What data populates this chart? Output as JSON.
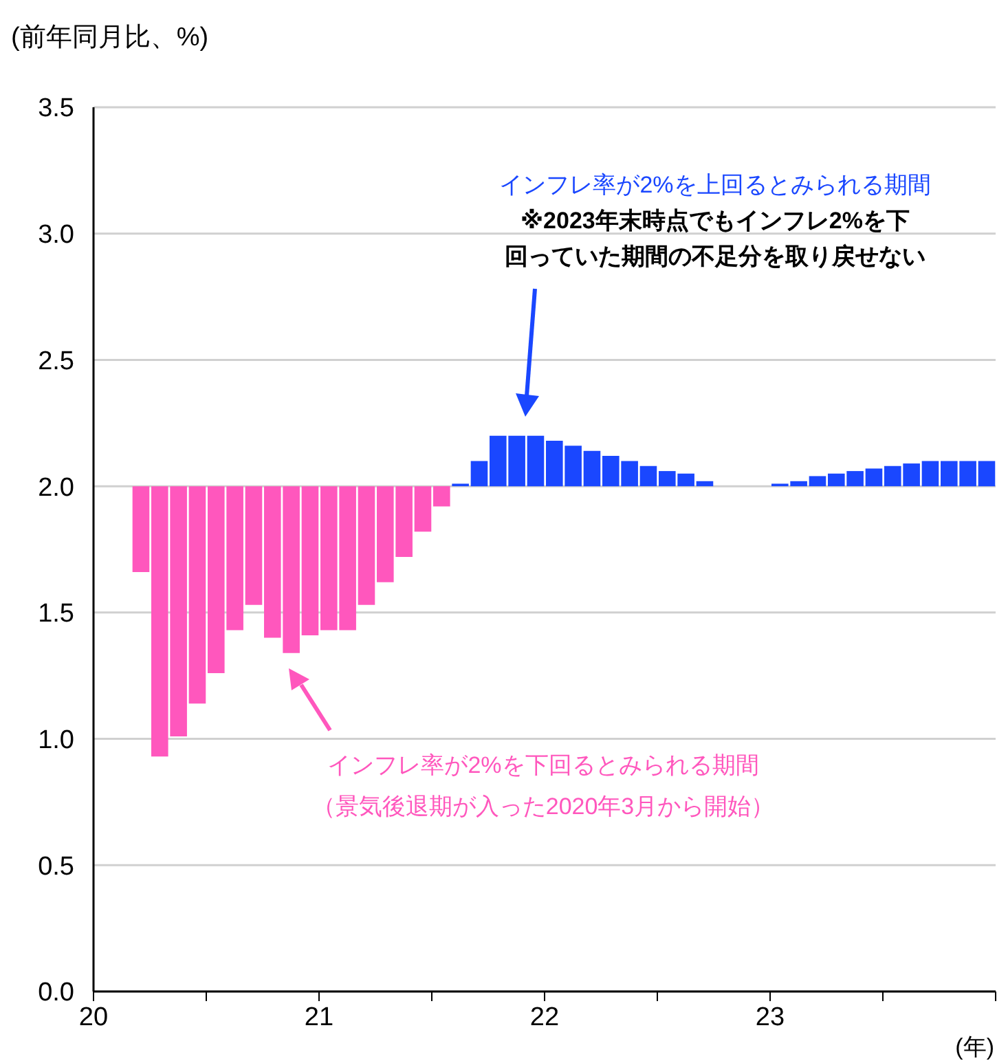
{
  "chart_data": {
    "type": "bar",
    "ylabel": "(前年同月比、%)",
    "xlabel": "(年)",
    "x": [
      "2020-03-16",
      "2020-04-16",
      "2020-05-16",
      "2020-06-16",
      "2020-07-16",
      "2020-08-16",
      "2020-09-16",
      "2020-10-16",
      "2020-11-16",
      "2020-12-16",
      "2021-01-16",
      "2021-02-16",
      "2021-03-16",
      "2021-04-16",
      "2021-05-16",
      "2021-06-16",
      "2021-07-16",
      "2021-08-16",
      "2021-09-16",
      "2021-10-16",
      "2021-11-16",
      "2021-12-16",
      "2022-01-16",
      "2022-02-16",
      "2022-03-16",
      "2022-04-16",
      "2022-05-16",
      "2022-06-16",
      "2022-07-16",
      "2022-08-16",
      "2022-09-16",
      "2022-10-16",
      "2022-11-16",
      "2022-12-16",
      "2023-01-16",
      "2023-02-16",
      "2023-03-16",
      "2023-04-16",
      "2023-05-16",
      "2023-06-16",
      "2023-07-16",
      "2023-08-16",
      "2023-09-16",
      "2023-10-16",
      "2023-11-16",
      "2023-12-16"
    ],
    "base": [
      2,
      2,
      2,
      2,
      2,
      2,
      2,
      2,
      2,
      2,
      2,
      2,
      2,
      2,
      2,
      2,
      2,
      2,
      2,
      2,
      2,
      2,
      2,
      2,
      2,
      2,
      2,
      2,
      2,
      2,
      2,
      null,
      null,
      null,
      2,
      2,
      2,
      2,
      2,
      2,
      2,
      2,
      2,
      2,
      2,
      2
    ],
    "values": [
      -0.34,
      -1.07,
      -0.99,
      -0.86,
      -0.74,
      -0.57,
      -0.47,
      -0.6,
      -0.66,
      -0.59,
      -0.57,
      -0.57,
      -0.47,
      -0.38,
      -0.28,
      -0.18,
      -0.08,
      0.01,
      0.1,
      0.2,
      0.2,
      0.2,
      0.18,
      0.16,
      0.14,
      0.12,
      0.1,
      0.08,
      0.06,
      0.05,
      0.02,
      null,
      null,
      null,
      0.01,
      0.02,
      0.04,
      0.05,
      0.06,
      0.07,
      0.08,
      0.09,
      0.1,
      0.1,
      0.1,
      0.1
    ],
    "colors": [
      "#ff57bd",
      "#ff57bd",
      "#ff57bd",
      "#ff57bd",
      "#ff57bd",
      "#ff57bd",
      "#ff57bd",
      "#ff57bd",
      "#ff57bd",
      "#ff57bd",
      "#ff57bd",
      "#ff57bd",
      "#ff57bd",
      "#ff57bd",
      "#ff57bd",
      "#ff57bd",
      "#ff57bd",
      "#1a47ff",
      "#1a47ff",
      "#1a47ff",
      "#1a47ff",
      "#1a47ff",
      "#1a47ff",
      "#1a47ff",
      "#1a47ff",
      "#1a47ff",
      "#1a47ff",
      "#1a47ff",
      "#1a47ff",
      "#1a47ff",
      "#1a47ff",
      "#1a47ff",
      "#1a47ff",
      "#1a47ff",
      "#1a47ff",
      "#1a47ff",
      "#1a47ff",
      "#1a47ff",
      "#1a47ff",
      "#1a47ff",
      "#1a47ff",
      "#1a47ff",
      "#1a47ff",
      "#1a47ff",
      "#1a47ff",
      "#1a47ff"
    ],
    "xlim": [
      "2020",
      "2024"
    ],
    "xticks": [
      {
        "value": "2020",
        "label": "20"
      },
      {
        "value": "2020-07",
        "label": null
      },
      {
        "value": "2021",
        "label": "21"
      },
      {
        "value": "2021-07",
        "label": null
      },
      {
        "value": "2022",
        "label": "22"
      },
      {
        "value": "2022-07",
        "label": null
      },
      {
        "value": "2023",
        "label": "23"
      },
      {
        "value": "2023-07",
        "label": null
      },
      {
        "value": "2024",
        "label": null
      }
    ],
    "ylim": [
      0,
      3.5
    ],
    "yticks": [
      {
        "value": 0,
        "label": "0.0"
      },
      {
        "value": 0.5,
        "label": "0.5"
      },
      {
        "value": 1,
        "label": "1.0"
      },
      {
        "value": 1.5,
        "label": "1.5"
      },
      {
        "value": 2,
        "label": "2.0"
      },
      {
        "value": 2.5,
        "label": "2.5"
      },
      {
        "value": 3,
        "label": "3.0"
      },
      {
        "value": 3.5,
        "label": "3.5"
      }
    ],
    "grid": "y",
    "annotations": [
      "インフレ率が2%を上回るとみられる期間",
      "※2023年末時点でもインフレ2%を下",
      "回っていた期間の不足分を取り戻せない",
      "インフレ率が2%を下回るとみられる期間",
      "（景気後退期が入った2020年3月から開始）"
    ]
  }
}
